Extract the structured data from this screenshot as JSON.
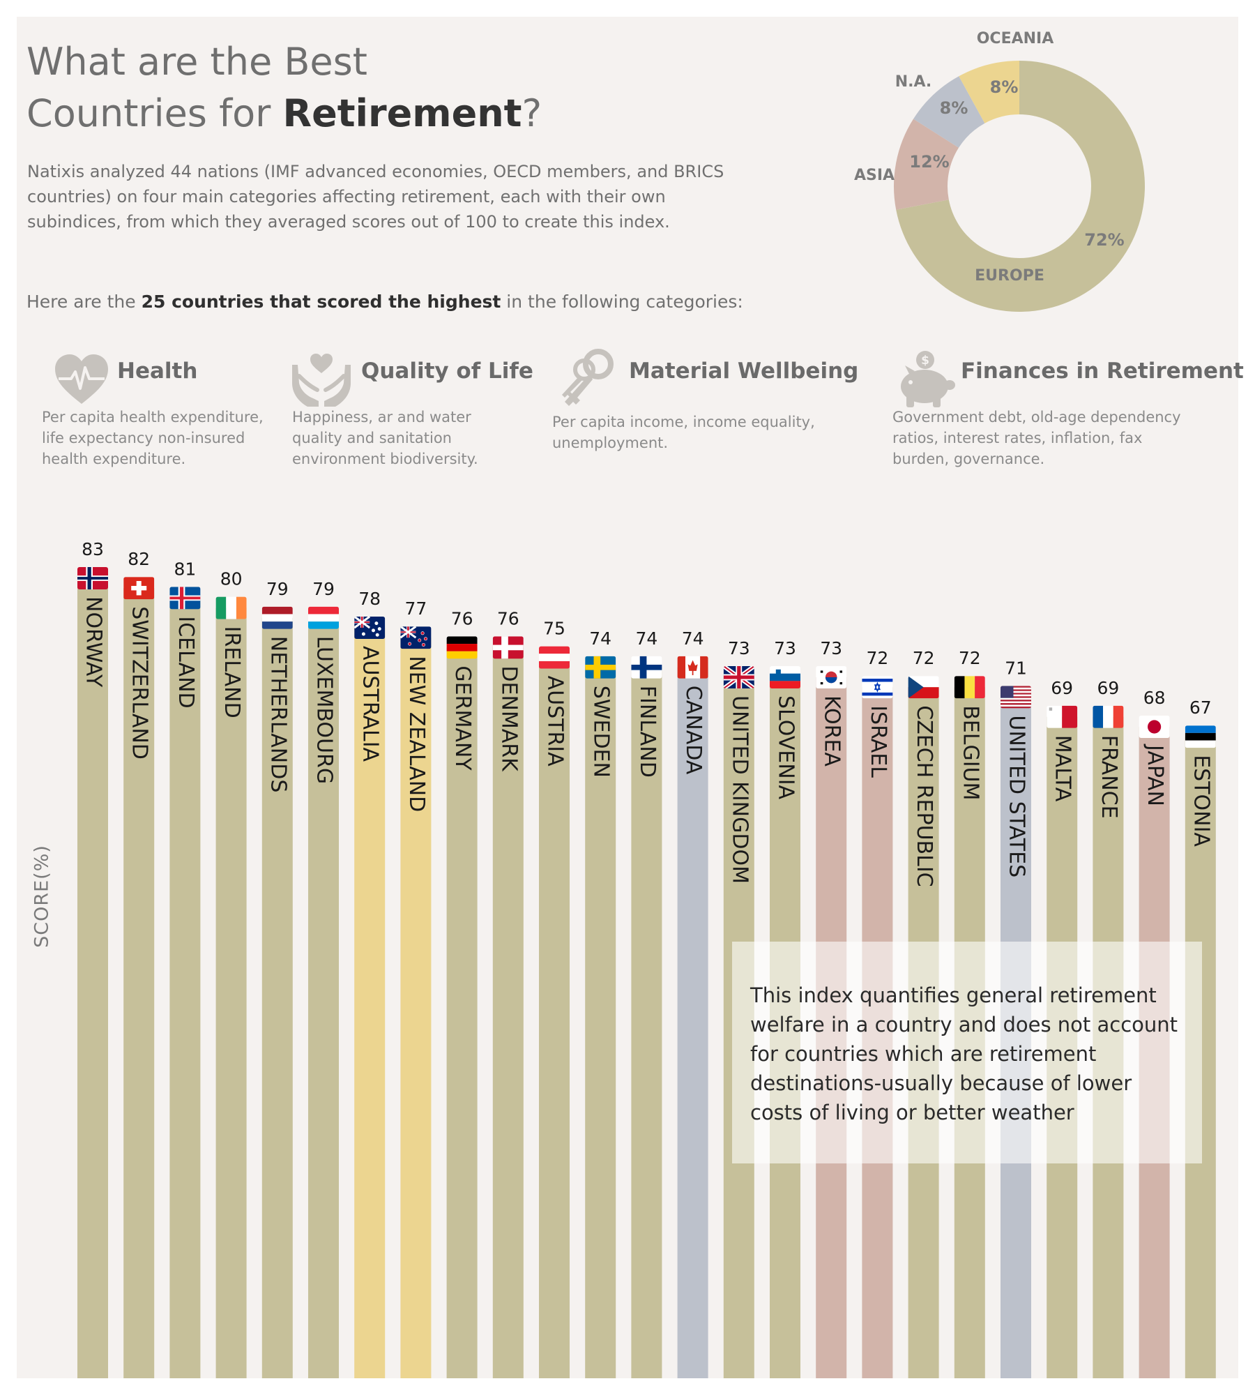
{
  "header": {
    "title_line1": "What are the Best",
    "title_line2_prefix": "Countries for ",
    "title_line2_bold": "Retirement",
    "title_line2_suffix": "?",
    "intro": "Natixis analyzed 44 nations (IMF advanced economies, OECD members, and BRICS countries) on four main categories affecting retirement, each with their own subindices, from which they averaged scores out of 100 to create this index.",
    "lead_prefix": "Here are the ",
    "lead_bold": "25 countries that scored the highest",
    "lead_suffix": " in the following categories:"
  },
  "categories": [
    {
      "title": "Health",
      "icon": "heart-pulse-icon",
      "desc_lines": [
        "Per capita health expenditure,",
        "life expectancy non-insured",
        "health expenditure."
      ]
    },
    {
      "title": "Quality of Life",
      "icon": "hands-heart-icon",
      "desc_lines": [
        "Happiness, ar and water",
        "quality and sanitation",
        "environment biodiversity."
      ]
    },
    {
      "title": "Material Wellbeing",
      "icon": "keys-icon",
      "desc_lines": [
        "Per capita income, income equality,",
        "unemployment."
      ]
    },
    {
      "title": "Finances in Retirement",
      "icon": "piggy-bank-icon",
      "desc_lines": [
        "Government debt, old-age dependency",
        "ratios, interest rates, inflation, fax",
        "burden, governance."
      ]
    }
  ],
  "note": "This index quantifies general retirement welfare in a country and does not account for countries which are retirement destinations-usually because of lower costs of living or better weather",
  "colors": {
    "EUROPE": "#c6c09a",
    "ASIA": "#d2b4aa",
    "N.A.": "#bcc1cb",
    "OCEANIA": "#ecd590",
    "icon": "#c6c2bd"
  },
  "chart_data": [
    {
      "type": "pie",
      "donut": true,
      "labels": [
        "EUROPE",
        "ASIA",
        "N.A.",
        "OCEANIA"
      ],
      "values": [
        72,
        12,
        8,
        8
      ],
      "value_labels": [
        "72%",
        "12%",
        "8%",
        "8%"
      ]
    },
    {
      "type": "bar",
      "ylabel": "SCORE(%)",
      "categories": [
        "NORWAY",
        "SWITZERLAND",
        "ICELAND",
        "IRELAND",
        "NETHERLANDS",
        "LUXEMBOURG",
        "AUSTRALIA",
        "NEW ZEALAND",
        "GERMANY",
        "DENMARK",
        "AUSTRIA",
        "SWEDEN",
        "FINLAND",
        "CANADA",
        "UNITED KINGDOM",
        "SLOVENIA",
        "KOREA",
        "ISRAEL",
        "CZECH REPUBLIC",
        "BELGIUM",
        "UNITED STATES",
        "MALTA",
        "FRANCE",
        "JAPAN",
        "ESTONIA"
      ],
      "values": [
        83,
        82,
        81,
        80,
        79,
        79,
        78,
        77,
        76,
        76,
        75,
        74,
        74,
        74,
        73,
        73,
        73,
        72,
        72,
        72,
        71,
        69,
        69,
        68,
        67
      ],
      "regions": [
        "EUROPE",
        "EUROPE",
        "EUROPE",
        "EUROPE",
        "EUROPE",
        "EUROPE",
        "OCEANIA",
        "OCEANIA",
        "EUROPE",
        "EUROPE",
        "EUROPE",
        "EUROPE",
        "EUROPE",
        "N.A.",
        "EUROPE",
        "EUROPE",
        "ASIA",
        "ASIA",
        "EUROPE",
        "EUROPE",
        "N.A.",
        "EUROPE",
        "EUROPE",
        "ASIA",
        "EUROPE"
      ],
      "flags": [
        "norway-flag-icon",
        "switzerland-flag-icon",
        "iceland-flag-icon",
        "ireland-flag-icon",
        "netherlands-flag-icon",
        "luxembourg-flag-icon",
        "australia-flag-icon",
        "new-zealand-flag-icon",
        "germany-flag-icon",
        "denmark-flag-icon",
        "austria-flag-icon",
        "sweden-flag-icon",
        "finland-flag-icon",
        "canada-flag-icon",
        "united-kingdom-flag-icon",
        "slovenia-flag-icon",
        "korea-flag-icon",
        "israel-flag-icon",
        "czech-republic-flag-icon",
        "belgium-flag-icon",
        "united-states-flag-icon",
        "malta-flag-icon",
        "france-flag-icon",
        "japan-flag-icon",
        "estonia-flag-icon"
      ]
    }
  ]
}
